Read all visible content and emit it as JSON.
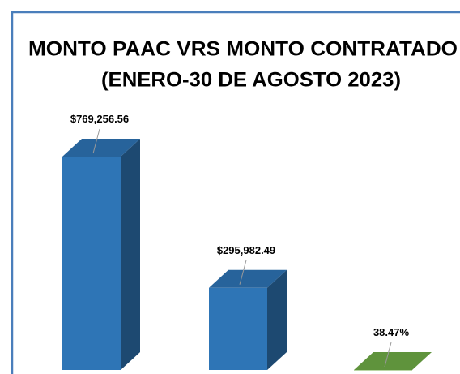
{
  "chart_data": {
    "type": "bar3d",
    "title": [
      "MONTO PAAC VRS MONTO CONTRATADO",
      "(ENERO-30 DE AGOSTO 2023)"
    ],
    "values": [
      769256.56,
      295982.49,
      38.47
    ],
    "value_labels": [
      "$769,256.56",
      "$295,982.49",
      "38.47%"
    ],
    "colors": [
      "#2e75b6",
      "#2e75b6",
      "#70ad47"
    ]
  }
}
